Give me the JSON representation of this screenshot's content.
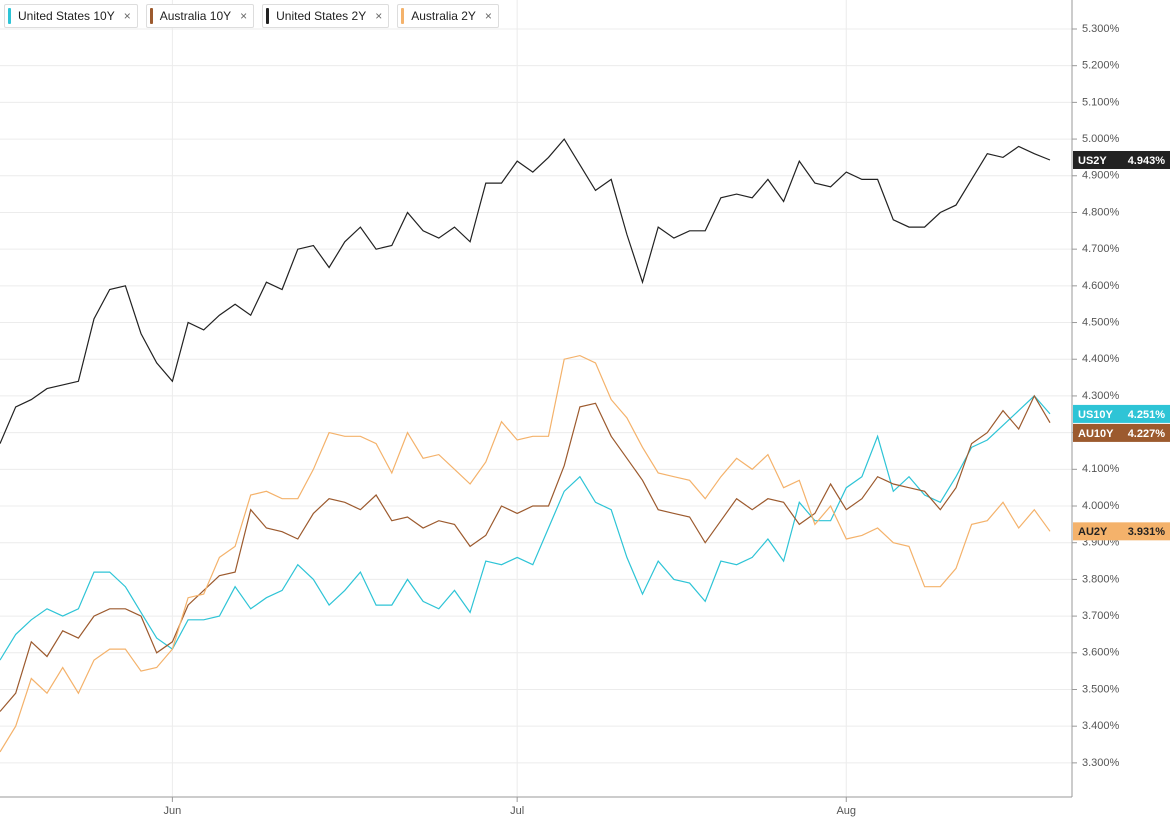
{
  "chart_data": {
    "type": "line",
    "categories": [
      null,
      null,
      null,
      null,
      null,
      null,
      null,
      null,
      null,
      null,
      null,
      "Jun",
      null,
      null,
      null,
      null,
      null,
      null,
      null,
      null,
      null,
      null,
      null,
      null,
      null,
      null,
      null,
      null,
      null,
      null,
      null,
      null,
      null,
      "Jul",
      null,
      null,
      null,
      null,
      null,
      null,
      null,
      null,
      null,
      null,
      null,
      null,
      null,
      null,
      null,
      null,
      null,
      null,
      null,
      null,
      "Aug",
      null,
      null,
      null,
      null,
      null,
      null,
      null,
      null,
      null,
      null,
      null,
      null,
      null
    ],
    "ylim": [
      3.207,
      5.379
    ],
    "yticks": [
      {
        "value": 3.3,
        "label": "3.300%"
      },
      {
        "value": 3.4,
        "label": "3.400%"
      },
      {
        "value": 3.5,
        "label": "3.500%"
      },
      {
        "value": 3.6,
        "label": "3.600%"
      },
      {
        "value": 3.7,
        "label": "3.700%"
      },
      {
        "value": 3.8,
        "label": "3.800%"
      },
      {
        "value": 3.9,
        "label": "3.900%"
      },
      {
        "value": 4.0,
        "label": "4.000%"
      },
      {
        "value": 4.1,
        "label": "4.100%"
      },
      {
        "value": 4.2,
        "label": "4.200%"
      },
      {
        "value": 4.3,
        "label": "4.300%"
      },
      {
        "value": 4.4,
        "label": "4.400%"
      },
      {
        "value": 4.5,
        "label": "4.500%"
      },
      {
        "value": 4.6,
        "label": "4.600%"
      },
      {
        "value": 4.7,
        "label": "4.700%"
      },
      {
        "value": 4.8,
        "label": "4.800%"
      },
      {
        "value": 4.9,
        "label": "4.900%"
      },
      {
        "value": 5.0,
        "label": "5.000%"
      },
      {
        "value": 5.1,
        "label": "5.100%"
      },
      {
        "value": 5.2,
        "label": "5.200%"
      },
      {
        "value": 5.3,
        "label": "5.300%"
      }
    ],
    "grid": true,
    "series": [
      {
        "name": "United States 10Y",
        "short_name": "US10Y",
        "color": "#2ec4d6",
        "values": [
          3.58,
          3.65,
          3.69,
          3.72,
          3.7,
          3.72,
          3.82,
          3.82,
          3.78,
          3.71,
          3.64,
          3.61,
          3.69,
          3.69,
          3.7,
          3.78,
          3.72,
          3.75,
          3.77,
          3.84,
          3.8,
          3.73,
          3.77,
          3.82,
          3.73,
          3.73,
          3.8,
          3.74,
          3.72,
          3.77,
          3.71,
          3.85,
          3.84,
          3.86,
          3.84,
          3.94,
          4.04,
          4.08,
          4.01,
          3.99,
          3.86,
          3.76,
          3.85,
          3.8,
          3.79,
          3.74,
          3.85,
          3.84,
          3.86,
          3.91,
          3.85,
          4.01,
          3.96,
          3.96,
          4.05,
          4.08,
          4.19,
          4.04,
          4.08,
          4.03,
          4.01,
          4.08,
          4.16,
          4.18,
          4.22,
          4.26,
          4.3,
          4.251
        ],
        "value_labels": [
          null,
          null,
          null,
          null,
          null,
          null,
          null,
          null,
          null,
          null,
          null,
          null,
          null,
          null,
          null,
          null,
          null,
          null,
          null,
          null,
          null,
          null,
          null,
          null,
          null,
          null,
          null,
          null,
          null,
          null,
          null,
          null,
          null,
          null,
          null,
          null,
          null,
          null,
          null,
          null,
          null,
          null,
          null,
          null,
          null,
          null,
          null,
          null,
          null,
          null,
          null,
          null,
          null,
          null,
          null,
          null,
          null,
          null,
          null,
          null,
          null,
          null,
          null,
          null,
          null,
          null,
          null,
          "4.251%"
        ]
      },
      {
        "name": "Australia 10Y",
        "short_name": "AU10Y",
        "color": "#9c5a2e",
        "values": [
          3.44,
          3.49,
          3.63,
          3.59,
          3.66,
          3.64,
          3.7,
          3.72,
          3.72,
          3.7,
          3.6,
          3.63,
          3.73,
          3.77,
          3.81,
          3.82,
          3.99,
          3.94,
          3.93,
          3.91,
          3.98,
          4.02,
          4.01,
          3.99,
          4.03,
          3.96,
          3.97,
          3.94,
          3.96,
          3.95,
          3.89,
          3.92,
          4.0,
          3.98,
          4.0,
          4.0,
          4.11,
          4.27,
          4.28,
          4.19,
          4.13,
          4.07,
          3.99,
          3.98,
          3.97,
          3.9,
          3.96,
          4.02,
          3.99,
          4.02,
          4.01,
          3.95,
          3.98,
          4.06,
          3.99,
          4.02,
          4.08,
          4.06,
          4.05,
          4.04,
          3.99,
          4.05,
          4.17,
          4.2,
          4.26,
          4.21,
          4.3,
          4.227
        ],
        "value_labels": [
          null,
          null,
          null,
          null,
          null,
          null,
          null,
          null,
          null,
          null,
          null,
          null,
          null,
          null,
          null,
          null,
          null,
          null,
          null,
          null,
          null,
          null,
          null,
          null,
          null,
          null,
          null,
          null,
          null,
          null,
          null,
          null,
          null,
          null,
          null,
          null,
          null,
          null,
          null,
          null,
          null,
          null,
          null,
          null,
          null,
          null,
          null,
          null,
          null,
          null,
          null,
          null,
          null,
          null,
          null,
          null,
          null,
          null,
          null,
          null,
          null,
          null,
          null,
          null,
          null,
          null,
          null,
          "4.227%"
        ]
      },
      {
        "name": "United States 2Y",
        "short_name": "US2Y",
        "color": "#222222",
        "values": [
          4.17,
          4.27,
          4.29,
          4.32,
          4.33,
          4.34,
          4.51,
          4.59,
          4.6,
          4.47,
          4.39,
          4.34,
          4.5,
          4.48,
          4.52,
          4.55,
          4.52,
          4.61,
          4.59,
          4.7,
          4.71,
          4.65,
          4.72,
          4.76,
          4.7,
          4.71,
          4.8,
          4.75,
          4.73,
          4.76,
          4.72,
          4.88,
          4.88,
          4.94,
          4.91,
          4.95,
          5.0,
          4.93,
          4.86,
          4.89,
          4.74,
          4.61,
          4.76,
          4.73,
          4.75,
          4.75,
          4.84,
          4.85,
          4.84,
          4.89,
          4.83,
          4.94,
          4.88,
          4.87,
          4.91,
          4.89,
          4.89,
          4.78,
          4.76,
          4.76,
          4.8,
          4.82,
          4.89,
          4.96,
          4.95,
          4.98,
          4.96,
          4.943
        ],
        "value_labels": [
          null,
          null,
          null,
          null,
          null,
          null,
          null,
          null,
          null,
          null,
          null,
          null,
          null,
          null,
          null,
          null,
          null,
          null,
          null,
          null,
          null,
          null,
          null,
          null,
          null,
          null,
          null,
          null,
          null,
          null,
          null,
          null,
          null,
          null,
          null,
          null,
          null,
          null,
          null,
          null,
          null,
          null,
          null,
          null,
          null,
          null,
          null,
          null,
          null,
          null,
          null,
          null,
          null,
          null,
          null,
          null,
          null,
          null,
          null,
          null,
          null,
          null,
          null,
          null,
          null,
          null,
          null,
          "4.943%"
        ]
      },
      {
        "name": "Australia 2Y",
        "short_name": "AU2Y",
        "color": "#f4b26b",
        "values": [
          3.33,
          3.4,
          3.53,
          3.49,
          3.56,
          3.49,
          3.58,
          3.61,
          3.61,
          3.55,
          3.56,
          3.61,
          3.75,
          3.76,
          3.86,
          3.89,
          4.03,
          4.04,
          4.02,
          4.02,
          4.1,
          4.2,
          4.19,
          4.19,
          4.17,
          4.09,
          4.2,
          4.13,
          4.14,
          4.1,
          4.06,
          4.12,
          4.23,
          4.18,
          4.19,
          4.19,
          4.4,
          4.41,
          4.39,
          4.29,
          4.24,
          4.16,
          4.09,
          4.08,
          4.07,
          4.02,
          4.08,
          4.13,
          4.1,
          4.14,
          4.05,
          4.07,
          3.95,
          4.0,
          3.91,
          3.92,
          3.94,
          3.9,
          3.89,
          3.78,
          3.78,
          3.83,
          3.95,
          3.96,
          4.01,
          3.94,
          3.99,
          3.931
        ],
        "value_labels": [
          null,
          null,
          null,
          null,
          null,
          null,
          null,
          null,
          null,
          null,
          null,
          null,
          null,
          null,
          null,
          null,
          null,
          null,
          null,
          null,
          null,
          null,
          null,
          null,
          null,
          null,
          null,
          null,
          null,
          null,
          null,
          null,
          null,
          null,
          null,
          null,
          null,
          null,
          null,
          null,
          null,
          null,
          null,
          null,
          null,
          null,
          null,
          null,
          null,
          null,
          null,
          null,
          null,
          null,
          null,
          null,
          null,
          null,
          null,
          null,
          null,
          null,
          null,
          null,
          null,
          null,
          null,
          "3.931%"
        ]
      }
    ]
  }
}
